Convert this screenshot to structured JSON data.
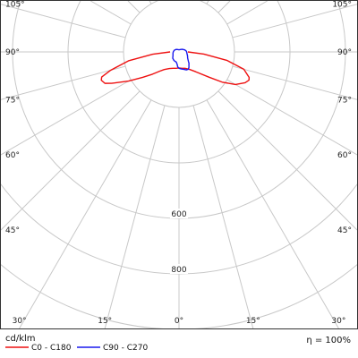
{
  "chart_data": {
    "type": "polar",
    "title": "",
    "unit_label": "cd/klm",
    "efficiency_label": "η = 100%",
    "radial_rings": [
      200,
      400,
      600,
      800,
      1000
    ],
    "radial_max": 1000,
    "labeled_rings": [
      {
        "value": 600,
        "label": "600"
      },
      {
        "value": 800,
        "label": "800"
      }
    ],
    "angle_lines": [
      0,
      15,
      30,
      45,
      60,
      75,
      90,
      105
    ],
    "angle_labels": {
      "left": [
        {
          "angle": 105,
          "label": "105°"
        },
        {
          "angle": 90,
          "label": "90°"
        },
        {
          "angle": 75,
          "label": "75°"
        },
        {
          "angle": 60,
          "label": "60°"
        },
        {
          "angle": 45,
          "label": "45°"
        }
      ],
      "right": [
        {
          "angle": 105,
          "label": "105°"
        },
        {
          "angle": 90,
          "label": "90°"
        },
        {
          "angle": 75,
          "label": "75°"
        },
        {
          "angle": 60,
          "label": "60°"
        },
        {
          "angle": 45,
          "label": "45°"
        }
      ],
      "bottom": [
        {
          "side": "left",
          "angle": 30,
          "label": "30°"
        },
        {
          "side": "left",
          "angle": 15,
          "label": "15°"
        },
        {
          "side": "center",
          "angle": 0,
          "label": "0°"
        },
        {
          "side": "right",
          "angle": 15,
          "label": "15°"
        },
        {
          "side": "right",
          "angle": 30,
          "label": "30°"
        }
      ]
    },
    "series": [
      {
        "name": "C0 - C180",
        "color": "#ee1111",
        "points": [
          {
            "angle": -90,
            "value": 32
          },
          {
            "angle": -85,
            "value": 95
          },
          {
            "angle": -80,
            "value": 185
          },
          {
            "angle": -75,
            "value": 255
          },
          {
            "angle": -72,
            "value": 293
          },
          {
            "angle": -70,
            "value": 298
          },
          {
            "angle": -67,
            "value": 290
          },
          {
            "angle": -65,
            "value": 268
          },
          {
            "angle": -60,
            "value": 210
          },
          {
            "angle": -55,
            "value": 160
          },
          {
            "angle": -50,
            "value": 125
          },
          {
            "angle": -45,
            "value": 98
          },
          {
            "angle": -40,
            "value": 83
          },
          {
            "angle": -30,
            "value": 69
          },
          {
            "angle": -20,
            "value": 63
          },
          {
            "angle": -10,
            "value": 60
          },
          {
            "angle": 0,
            "value": 58
          },
          {
            "angle": 10,
            "value": 60
          },
          {
            "angle": 20,
            "value": 63
          },
          {
            "angle": 30,
            "value": 72
          },
          {
            "angle": 40,
            "value": 93
          },
          {
            "angle": 50,
            "value": 142
          },
          {
            "angle": 55,
            "value": 190
          },
          {
            "angle": 60,
            "value": 235
          },
          {
            "angle": 65,
            "value": 263
          },
          {
            "angle": 68,
            "value": 272
          },
          {
            "angle": 70,
            "value": 269
          },
          {
            "angle": 75,
            "value": 242
          },
          {
            "angle": 80,
            "value": 175
          },
          {
            "angle": 85,
            "value": 90
          },
          {
            "angle": 90,
            "value": 32
          }
        ]
      },
      {
        "name": "C90 - C270",
        "color": "#1a1aee",
        "points": [
          {
            "angle": -30,
            "value": 36
          },
          {
            "angle": -15,
            "value": 38
          },
          {
            "angle": -8,
            "value": 46
          },
          {
            "angle": -5,
            "value": 54
          },
          {
            "angle": 0,
            "value": 59
          },
          {
            "angle": 8,
            "value": 62
          },
          {
            "angle": 15,
            "value": 65
          },
          {
            "angle": 22,
            "value": 70
          },
          {
            "angle": 28,
            "value": 71
          },
          {
            "angle": 33,
            "value": 66
          },
          {
            "angle": 38,
            "value": 58
          },
          {
            "angle": 41,
            "value": 55
          },
          {
            "angle": 45,
            "value": 48
          },
          {
            "angle": 55,
            "value": 38
          },
          {
            "angle": 65,
            "value": 34
          },
          {
            "angle": 80,
            "value": 29
          },
          {
            "angle": 95,
            "value": 27
          },
          {
            "angle": 110,
            "value": 22
          },
          {
            "angle": 130,
            "value": 15
          },
          {
            "angle": 150,
            "value": 10
          },
          {
            "angle": 170,
            "value": 8
          },
          {
            "angle": -170,
            "value": 8
          },
          {
            "angle": -150,
            "value": 10
          },
          {
            "angle": -130,
            "value": 14
          },
          {
            "angle": -110,
            "value": 18
          },
          {
            "angle": -95,
            "value": 20
          },
          {
            "angle": -80,
            "value": 22
          },
          {
            "angle": -60,
            "value": 25
          },
          {
            "angle": -45,
            "value": 32
          },
          {
            "angle": -30,
            "value": 36
          }
        ]
      }
    ],
    "legend_position": "bottom-left"
  }
}
